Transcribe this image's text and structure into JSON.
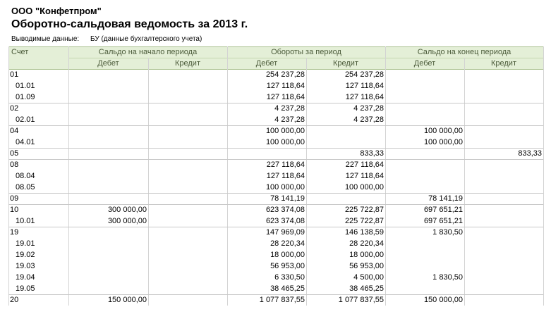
{
  "header": {
    "company": "ООО \"Конфетпром\"",
    "title": "Оборотно-сальдовая ведомость за 2013 г.",
    "filter_label": "Выводимые данные:",
    "filter_value": "БУ (данные бухгалтерского учета)"
  },
  "table": {
    "account_header": "Счет",
    "groups": [
      {
        "title": "Сальдо на начало периода",
        "debit": "Дебет",
        "credit": "Кредит"
      },
      {
        "title": "Обороты за период",
        "debit": "Дебет",
        "credit": "Кредит"
      },
      {
        "title": "Сальдо на конец периода",
        "debit": "Дебет",
        "credit": "Кредит"
      }
    ],
    "rows": [
      {
        "account": "01",
        "turnover_debit": "254 237,28",
        "turnover_credit": "254 237,28"
      },
      {
        "account": "01.01",
        "turnover_debit": "127 118,64",
        "turnover_credit": "127 118,64"
      },
      {
        "account": "01.09",
        "turnover_debit": "127 118,64",
        "turnover_credit": "127 118,64"
      },
      {
        "account": "02",
        "turnover_debit": "4 237,28",
        "turnover_credit": "4 237,28"
      },
      {
        "account": "02.01",
        "turnover_debit": "4 237,28",
        "turnover_credit": "4 237,28"
      },
      {
        "account": "04",
        "turnover_debit": "100 000,00",
        "closing_debit": "100 000,00"
      },
      {
        "account": "04.01",
        "turnover_debit": "100 000,00",
        "closing_debit": "100 000,00"
      },
      {
        "account": "05",
        "turnover_credit": "833,33",
        "closing_credit": "833,33"
      },
      {
        "account": "08",
        "turnover_debit": "227 118,64",
        "turnover_credit": "227 118,64"
      },
      {
        "account": "08.04",
        "turnover_debit": "127 118,64",
        "turnover_credit": "127 118,64"
      },
      {
        "account": "08.05",
        "turnover_debit": "100 000,00",
        "turnover_credit": "100 000,00"
      },
      {
        "account": "09",
        "turnover_debit": "78 141,19",
        "closing_debit": "78 141,19"
      },
      {
        "account": "10",
        "opening_debit": "300 000,00",
        "turnover_debit": "623 374,08",
        "turnover_credit": "225 722,87",
        "closing_debit": "697 651,21"
      },
      {
        "account": "10.01",
        "opening_debit": "300 000,00",
        "turnover_debit": "623 374,08",
        "turnover_credit": "225 722,87",
        "closing_debit": "697 651,21"
      },
      {
        "account": "19",
        "turnover_debit": "147 969,09",
        "turnover_credit": "146 138,59",
        "closing_debit": "1 830,50"
      },
      {
        "account": "19.01",
        "turnover_debit": "28 220,34",
        "turnover_credit": "28 220,34"
      },
      {
        "account": "19.02",
        "turnover_debit": "18 000,00",
        "turnover_credit": "18 000,00"
      },
      {
        "account": "19.03",
        "turnover_debit": "56 953,00",
        "turnover_credit": "56 953,00"
      },
      {
        "account": "19.04",
        "turnover_debit": "6 330,50",
        "turnover_credit": "4 500,00",
        "closing_debit": "1 830,50"
      },
      {
        "account": "19.05",
        "turnover_debit": "38 465,25",
        "turnover_credit": "38 465,25"
      },
      {
        "account": "20",
        "opening_debit": "150 000,00",
        "turnover_debit": "1 077 837,55",
        "turnover_credit": "1 077 837,55",
        "closing_debit": "150 000,00"
      }
    ]
  }
}
